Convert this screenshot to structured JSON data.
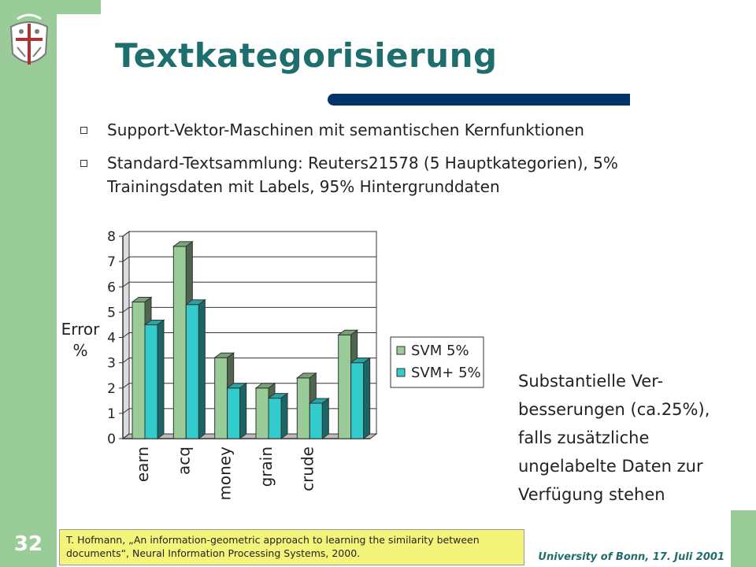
{
  "slide": {
    "number": "32",
    "title": "Textkategorisierung",
    "bullets": [
      "Support-Vektor-Maschinen mit semantischen Kernfunktionen",
      "Standard-Textsammlung: Reuters21578 (5 Hauptkategorien), 5% Trainingsdaten mit Labels, 95% Hintergrunddaten"
    ],
    "side_text": "Substantielle Ver-besserungen (ca.25%), falls zusätzliche ungelabelte Daten zur Verfügung stehen",
    "reference": "T. Hofmann, „An information-geometric approach to learning the similarity between documents“, Neural Information Processing Systems, 2000.",
    "footer": "University of Bonn, 17. Juli 2001"
  },
  "colors": {
    "sidebar": "#99cc99",
    "title": "#1f6e6e",
    "title_bar": "#003366",
    "series_1": "#99cc99",
    "series_2": "#33cccc",
    "reference_box": "#f4f47a"
  },
  "logo_icon": "university-seal-icon",
  "chart_data": {
    "type": "bar",
    "categories": [
      "earn",
      "acq",
      "money",
      "grain",
      "crude",
      ""
    ],
    "series": [
      {
        "name": "SVM 5%",
        "values": [
          5.4,
          7.6,
          3.2,
          2.0,
          2.4,
          4.1
        ]
      },
      {
        "name": "SVM+ 5%",
        "values": [
          4.5,
          5.3,
          2.0,
          1.6,
          1.4,
          3.0
        ]
      }
    ],
    "ylabel_line1": "Error",
    "ylabel_line2": "%",
    "yticks": [
      "0",
      "1",
      "2",
      "3",
      "4",
      "5",
      "6",
      "7",
      "8"
    ],
    "ylim": [
      0,
      8
    ],
    "grid": true,
    "legend_position": "right",
    "bar_style": "3d"
  }
}
